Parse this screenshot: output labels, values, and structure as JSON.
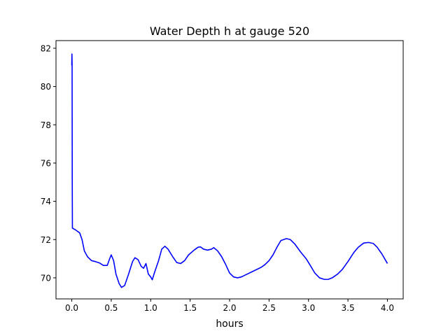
{
  "chart_data": {
    "type": "line",
    "title": "Water Depth h at gauge 520",
    "xlabel": "hours",
    "ylabel": "",
    "xlim": [
      -0.2,
      4.2
    ],
    "ylim": [
      68.9,
      82.4
    ],
    "xticks": [
      0.0,
      0.5,
      1.0,
      1.5,
      2.0,
      2.5,
      3.0,
      3.5,
      4.0
    ],
    "xtick_labels": [
      "0.0",
      "0.5",
      "1.0",
      "1.5",
      "2.0",
      "2.5",
      "3.0",
      "3.5",
      "4.0"
    ],
    "yticks": [
      70,
      72,
      74,
      76,
      78,
      80,
      82
    ],
    "ytick_labels": [
      "70",
      "72",
      "74",
      "76",
      "78",
      "80",
      "82"
    ],
    "grid": false,
    "series": [
      {
        "color": "#0000ff",
        "points": [
          [
            0.0,
            81.1
          ],
          [
            0.002,
            81.7
          ],
          [
            0.004,
            81.2
          ],
          [
            0.006,
            75.0
          ],
          [
            0.008,
            72.6
          ],
          [
            0.05,
            72.5
          ],
          [
            0.1,
            72.35
          ],
          [
            0.13,
            72.0
          ],
          [
            0.16,
            71.4
          ],
          [
            0.2,
            71.1
          ],
          [
            0.25,
            70.9
          ],
          [
            0.3,
            70.85
          ],
          [
            0.35,
            70.78
          ],
          [
            0.4,
            70.65
          ],
          [
            0.45,
            70.65
          ],
          [
            0.48,
            71.0
          ],
          [
            0.5,
            71.2
          ],
          [
            0.53,
            70.9
          ],
          [
            0.56,
            70.2
          ],
          [
            0.6,
            69.7
          ],
          [
            0.63,
            69.5
          ],
          [
            0.67,
            69.6
          ],
          [
            0.72,
            70.2
          ],
          [
            0.77,
            70.85
          ],
          [
            0.8,
            71.05
          ],
          [
            0.84,
            70.95
          ],
          [
            0.88,
            70.6
          ],
          [
            0.91,
            70.5
          ],
          [
            0.94,
            70.75
          ],
          [
            0.97,
            70.2
          ],
          [
            1.0,
            70.05
          ],
          [
            1.02,
            69.9
          ],
          [
            1.05,
            70.3
          ],
          [
            1.1,
            70.9
          ],
          [
            1.14,
            71.5
          ],
          [
            1.18,
            71.65
          ],
          [
            1.22,
            71.5
          ],
          [
            1.28,
            71.1
          ],
          [
            1.33,
            70.8
          ],
          [
            1.38,
            70.75
          ],
          [
            1.43,
            70.9
          ],
          [
            1.48,
            71.2
          ],
          [
            1.55,
            71.45
          ],
          [
            1.6,
            71.6
          ],
          [
            1.63,
            71.62
          ],
          [
            1.67,
            71.5
          ],
          [
            1.72,
            71.45
          ],
          [
            1.77,
            71.5
          ],
          [
            1.8,
            71.58
          ],
          [
            1.85,
            71.4
          ],
          [
            1.9,
            71.1
          ],
          [
            1.95,
            70.7
          ],
          [
            2.0,
            70.25
          ],
          [
            2.05,
            70.05
          ],
          [
            2.1,
            70.0
          ],
          [
            2.15,
            70.05
          ],
          [
            2.2,
            70.15
          ],
          [
            2.3,
            70.35
          ],
          [
            2.4,
            70.55
          ],
          [
            2.45,
            70.7
          ],
          [
            2.5,
            70.9
          ],
          [
            2.55,
            71.2
          ],
          [
            2.6,
            71.6
          ],
          [
            2.65,
            71.95
          ],
          [
            2.72,
            72.05
          ],
          [
            2.77,
            72.0
          ],
          [
            2.83,
            71.75
          ],
          [
            2.9,
            71.35
          ],
          [
            2.97,
            71.0
          ],
          [
            3.03,
            70.6
          ],
          [
            3.08,
            70.25
          ],
          [
            3.14,
            70.0
          ],
          [
            3.2,
            69.92
          ],
          [
            3.25,
            69.92
          ],
          [
            3.3,
            70.0
          ],
          [
            3.37,
            70.2
          ],
          [
            3.43,
            70.45
          ],
          [
            3.5,
            70.85
          ],
          [
            3.57,
            71.3
          ],
          [
            3.63,
            71.6
          ],
          [
            3.7,
            71.82
          ],
          [
            3.76,
            71.85
          ],
          [
            3.82,
            71.8
          ],
          [
            3.87,
            71.6
          ],
          [
            3.93,
            71.25
          ],
          [
            4.0,
            70.75
          ]
        ]
      }
    ]
  }
}
